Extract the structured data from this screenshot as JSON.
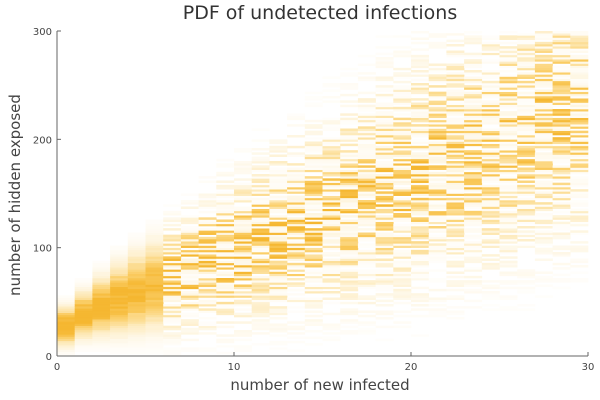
{
  "chart_data": {
    "type": "heatmap",
    "title": "PDF of undetected infections",
    "xlabel": "number of new infected",
    "ylabel": "number of hidden exposed",
    "xlim": [
      0,
      30
    ],
    "ylim": [
      0,
      300
    ],
    "x_ticks": [
      0,
      10,
      20,
      30
    ],
    "y_ticks": [
      0,
      100,
      200,
      300
    ],
    "grid": false,
    "legend": "none",
    "colormap": [
      "#ffffff",
      "#fde9b8",
      "#fbcf6a",
      "#f5b731"
    ],
    "x_bins": [
      0,
      1,
      2,
      3,
      4,
      5,
      6,
      7,
      8,
      9,
      10,
      11,
      12,
      13,
      14,
      15,
      16,
      17,
      18,
      19,
      20,
      21,
      22,
      23,
      24,
      25,
      26,
      27,
      28,
      29
    ],
    "ridge_mean": [
      28,
      38,
      46,
      53,
      59,
      65,
      72,
      79,
      86,
      93,
      100,
      106,
      113,
      119,
      126,
      133,
      140,
      147,
      154,
      161,
      168,
      175,
      182,
      189,
      196,
      203,
      210,
      218,
      225,
      232
    ],
    "ridge_spread": [
      10,
      12,
      15,
      18,
      20,
      22,
      25,
      27,
      30,
      32,
      34,
      36,
      38,
      40,
      42,
      44,
      46,
      48,
      50,
      52,
      54,
      55,
      56,
      57,
      58,
      59,
      60,
      61,
      62,
      63
    ]
  }
}
